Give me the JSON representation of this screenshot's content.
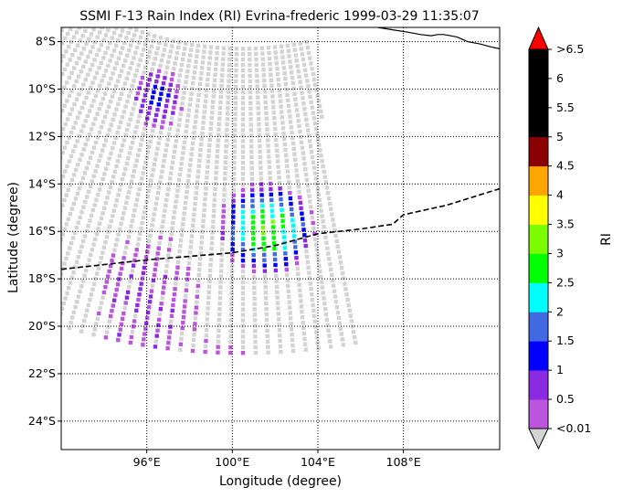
{
  "title": "SSMI F-13 Rain Index (RI) Evrina-frederic 1999-03-29 11:35:07",
  "xlabel": "Longitude (degree)",
  "ylabel": "Latitude (degree)",
  "colorbar_label": "RI",
  "map": {
    "lon_range": [
      92,
      112.5
    ],
    "lat_range": [
      -25.2,
      -7.4
    ],
    "x_ticks": [
      {
        "value": 96,
        "label": "96°E"
      },
      {
        "value": 100,
        "label": "100°E"
      },
      {
        "value": 104,
        "label": "104°E"
      },
      {
        "value": 108,
        "label": "108°E"
      }
    ],
    "y_ticks": [
      {
        "value": -8,
        "label": "8°S"
      },
      {
        "value": -10,
        "label": "10°S"
      },
      {
        "value": -12,
        "label": "12°S"
      },
      {
        "value": -14,
        "label": "14°S"
      },
      {
        "value": -16,
        "label": "16°S"
      },
      {
        "value": -18,
        "label": "18°S"
      },
      {
        "value": -20,
        "label": "20°S"
      },
      {
        "value": -22,
        "label": "22°S"
      },
      {
        "value": -24,
        "label": "24°S"
      }
    ],
    "grid": "dotted",
    "track": [
      [
        92,
        -17.6
      ],
      [
        94,
        -17.4
      ],
      [
        96,
        -17.2
      ],
      [
        98,
        -17.05
      ],
      [
        100,
        -16.9
      ],
      [
        102,
        -16.6
      ],
      [
        104,
        -16.1
      ],
      [
        106,
        -15.9
      ],
      [
        107.5,
        -15.7
      ],
      [
        108,
        -15.3
      ],
      [
        110,
        -14.9
      ],
      [
        112.5,
        -14.2
      ]
    ],
    "coastline": [
      [
        106.8,
        -7.4
      ],
      [
        107.5,
        -7.5
      ],
      [
        108.2,
        -7.6
      ],
      [
        108.8,
        -7.7
      ],
      [
        109.3,
        -7.75
      ],
      [
        109.6,
        -7.7
      ],
      [
        109.9,
        -7.7
      ],
      [
        110.5,
        -7.8
      ],
      [
        111,
        -8.0
      ],
      [
        111.6,
        -8.1
      ],
      [
        112,
        -8.2
      ],
      [
        112.5,
        -8.3
      ]
    ],
    "swath": {
      "center_lon": 100.5,
      "center_lat": 5.0,
      "outer_radius_deg": 14.0,
      "inner_radius_deg": 27.5,
      "left_lon_edge": 92,
      "right_edge_top": [
        103.5,
        -7.4
      ],
      "right_edge_bottom": [
        106.8,
        -25.2
      ]
    },
    "rain_features": [
      {
        "name": "cyclone core",
        "center": [
          101.6,
          -15.9
        ],
        "radii": [
          2.3,
          2.0
        ],
        "peak_ri": 3.0
      },
      {
        "name": "band north",
        "center": [
          96.5,
          -10.4
        ],
        "radii": [
          1.2,
          1.3
        ],
        "peak_ri": 1.2
      },
      {
        "name": "band west",
        "center": [
          96.0,
          -19.0
        ],
        "radii": [
          2.5,
          3.0
        ],
        "peak_ri": 0.5
      },
      {
        "name": "band south",
        "center": [
          98.7,
          -22.0
        ],
        "radii": [
          2.5,
          1.4
        ],
        "peak_ri": 0.5
      }
    ]
  },
  "colorbar": {
    "levels": [
      "<0.01",
      "0.5",
      "1",
      "1.5",
      "2",
      "2.5",
      "3",
      "3.5",
      "4",
      "4.5",
      "5",
      "5.5",
      "6",
      ">6.5"
    ],
    "colors": [
      "#bb55dd",
      "#8a2be2",
      "#0000ff",
      "#4169e1",
      "#00ffff",
      "#00ff00",
      "#7cfc00",
      "#ffff00",
      "#ffa500",
      "#8b0000",
      "#000000",
      "#000000",
      "#000000"
    ],
    "over_color": "#ff0000",
    "under_color": "#d3d3d3"
  }
}
